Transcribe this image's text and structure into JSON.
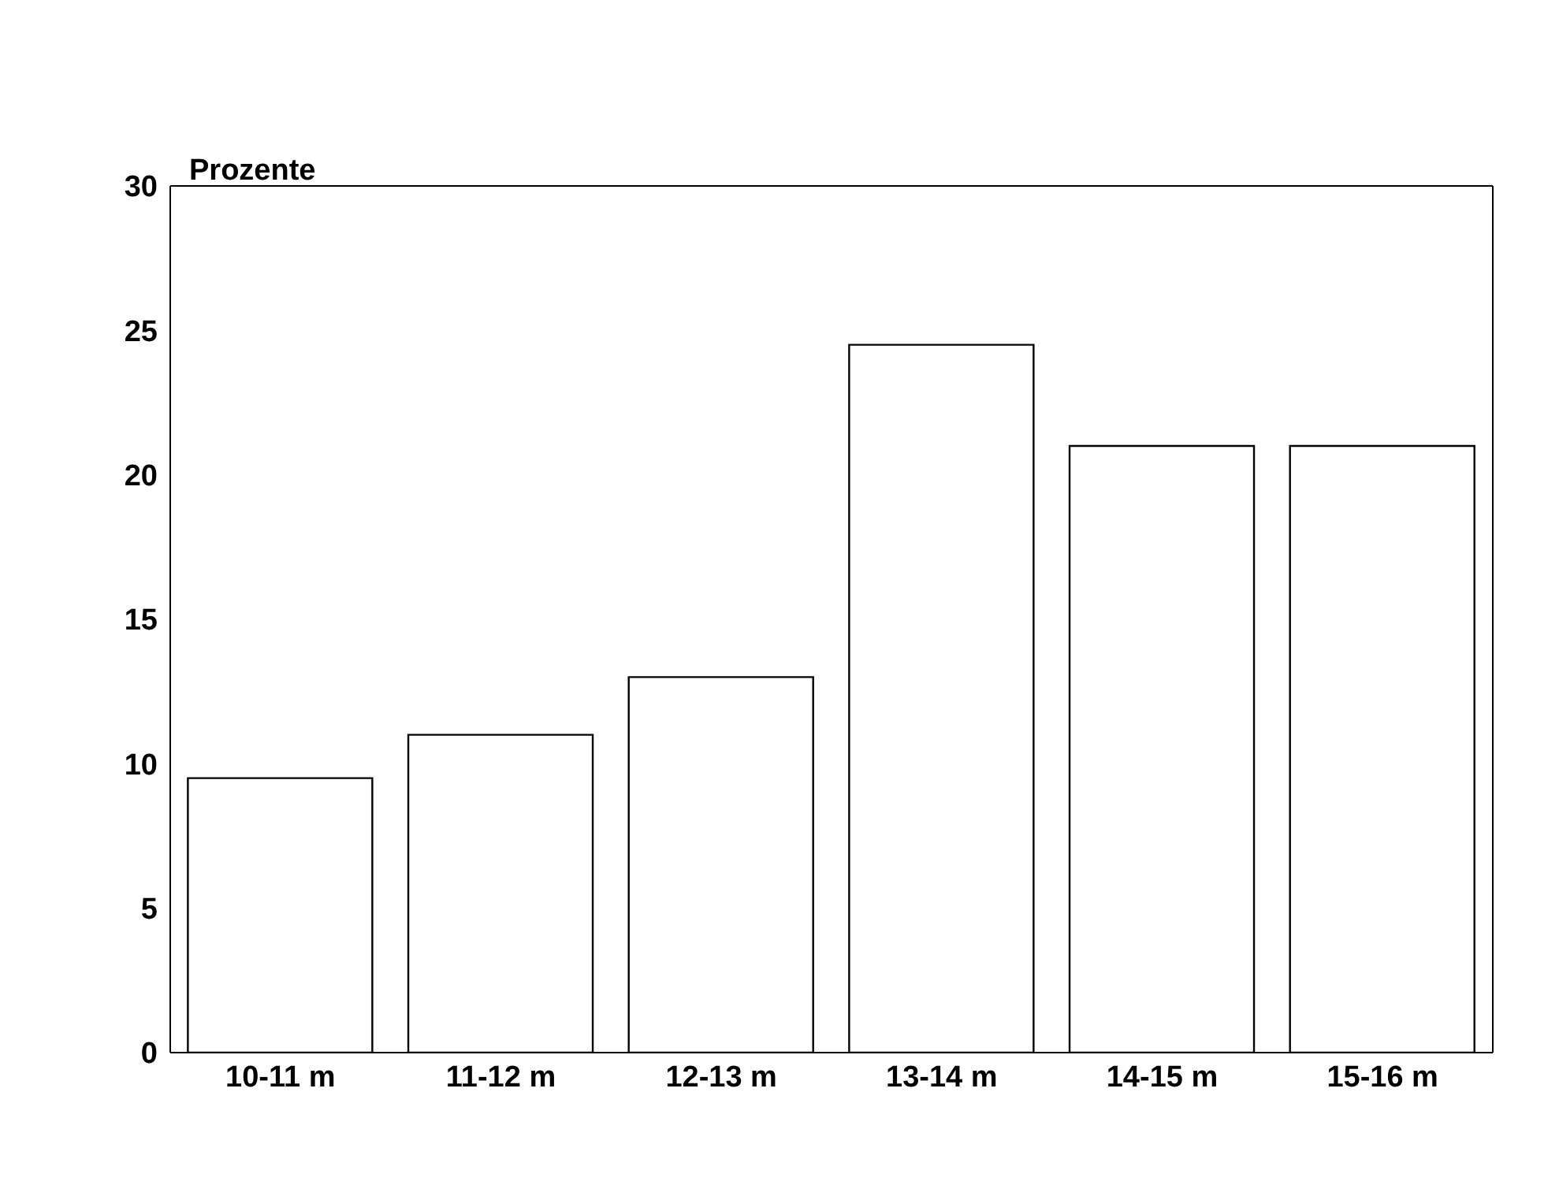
{
  "chart_data": {
    "type": "bar",
    "ylabel": "Prozente",
    "categories": [
      "10-11 m",
      "11-12 m",
      "12-13 m",
      "13-14 m",
      "14-15 m",
      "15-16 m"
    ],
    "values": [
      9.5,
      11,
      13,
      24.5,
      21,
      21
    ],
    "color": "#ffffff",
    "ylim": [
      0,
      30
    ],
    "yticks": [
      0,
      5,
      10,
      15,
      20,
      25,
      30
    ],
    "grid": false,
    "legend": false
  }
}
